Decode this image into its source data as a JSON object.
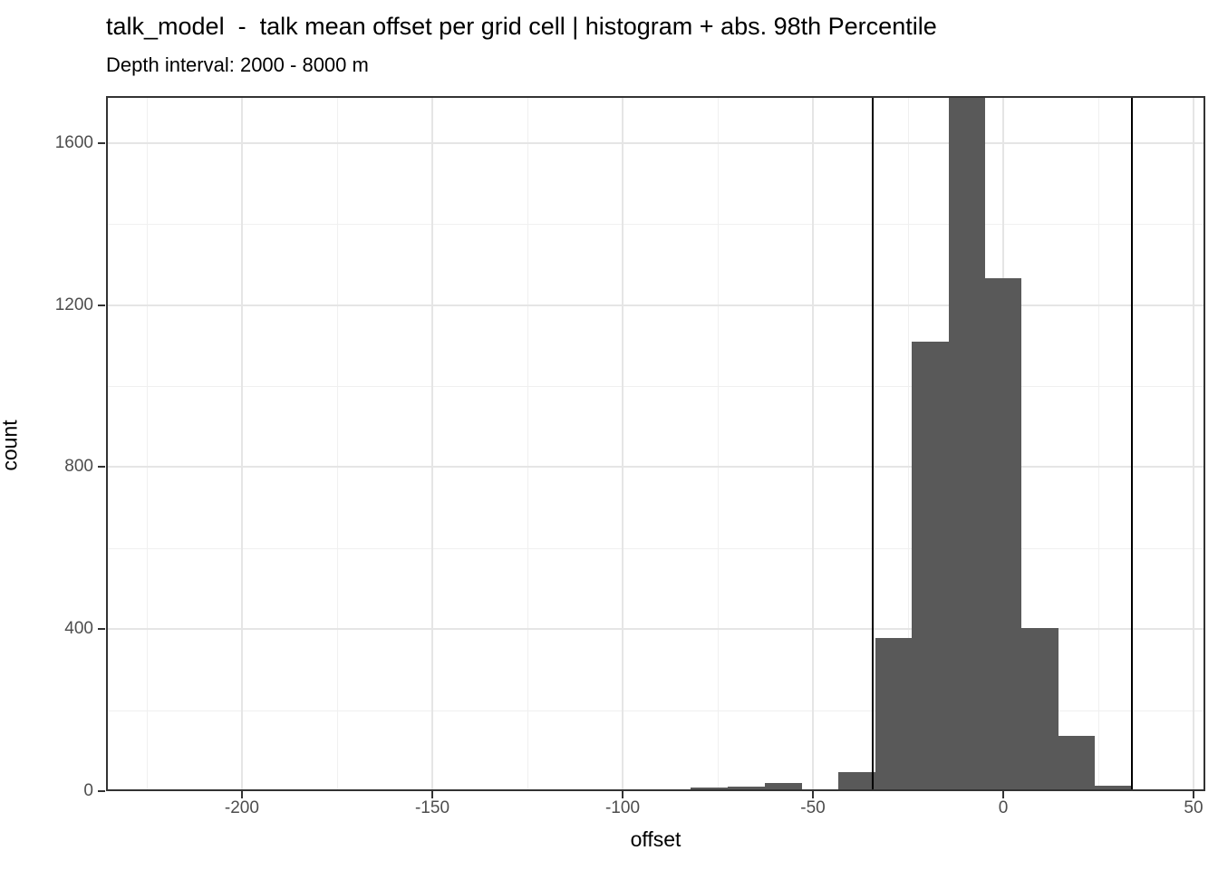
{
  "header": {
    "title": "talk_model  -  talk mean offset per grid cell | histogram + abs. 98th Percentile",
    "subtitle": "Depth interval: 2000 - 8000 m"
  },
  "chart_data": {
    "type": "bar",
    "subtype": "histogram",
    "title": "talk_model  -  talk mean offset per grid cell | histogram + abs. 98th Percentile",
    "subtitle": "Depth interval: 2000 - 8000 m",
    "xlabel": "offset",
    "ylabel": "count",
    "x_range": [
      -235.7,
      53.1
    ],
    "y_range": [
      0,
      1716
    ],
    "x_major_ticks": [
      -200,
      -150,
      -100,
      -50,
      0,
      50
    ],
    "x_minor_gridlines": [
      -225,
      -175,
      -125,
      -75,
      -25,
      25
    ],
    "y_major_ticks": [
      0,
      400,
      800,
      1200,
      1600
    ],
    "y_minor_gridlines": [
      200,
      600,
      1000,
      1400
    ],
    "grid": "on",
    "legend": "none",
    "bin_width": 9.7,
    "bin_edges": [
      -101.7,
      -92.0,
      -82.2,
      -72.4,
      -62.6,
      -52.9,
      -43.3,
      -33.6,
      -24.0,
      -14.3,
      -4.8,
      4.8,
      14.5,
      24.0,
      33.9
    ],
    "counts": [
      2,
      2,
      8,
      12,
      21,
      3,
      48,
      378,
      1110,
      1716,
      1267,
      402,
      137,
      14
    ],
    "tallest_bar_clipped_at_panel_top": true,
    "vlines": [
      -34.2,
      33.9
    ],
    "vline_meaning": "abs. 98th Percentile",
    "colors": {
      "bar_fill": "#595959",
      "vline": "#000000",
      "panel_border": "#333333",
      "grid_major": "#e5e5e5",
      "grid_minor": "#f0f0f0",
      "tick_label": "#4d4d4d",
      "text": "#000000",
      "background": "#ffffff"
    }
  }
}
